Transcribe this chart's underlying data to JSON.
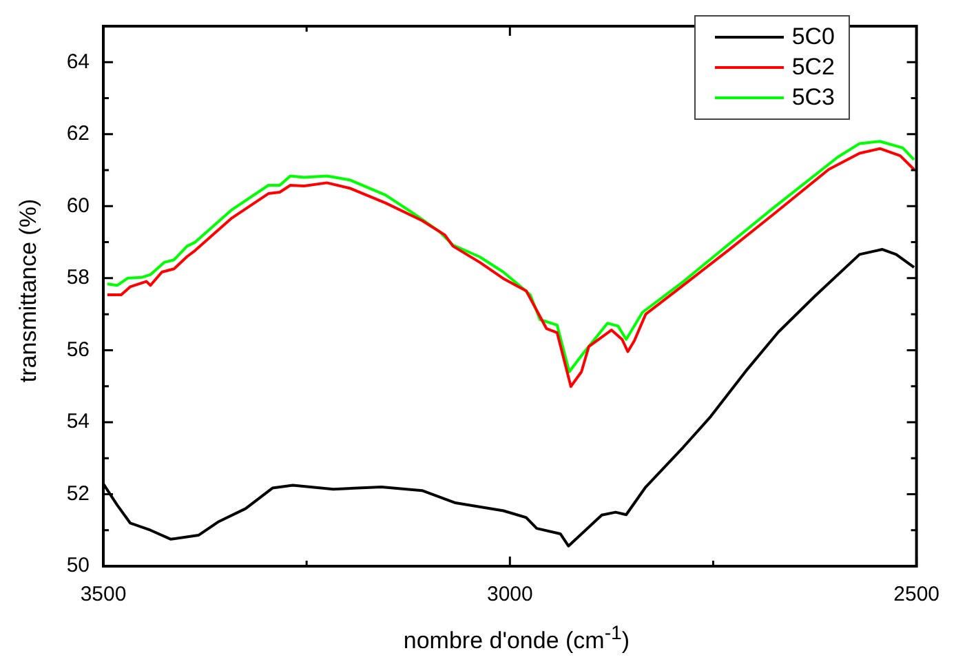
{
  "chart_data": {
    "type": "line",
    "xlabel": "nombre d'onde (cm$^{-1}$)",
    "ylabel": "transmittance (%)",
    "xlim": [
      3500,
      2500
    ],
    "xticks": [
      3500,
      {
        "value": 3250,
        "label": null
      },
      3000,
      {
        "value": 2750,
        "label": null
      },
      2500
    ],
    "ylim": [
      50,
      65
    ],
    "yticks": [
      50,
      {
        "value": 51,
        "label": null
      },
      52,
      {
        "value": 53,
        "label": null
      },
      54,
      {
        "value": 55,
        "label": null
      },
      56,
      {
        "value": 57,
        "label": null
      },
      58,
      {
        "value": 59,
        "label": null
      },
      60,
      {
        "value": 61,
        "label": null
      },
      62,
      {
        "value": 63,
        "label": null
      },
      64
    ],
    "legend": "top right",
    "marker": "none",
    "line_style": "solid",
    "grid": false,
    "series": [
      {
        "name": "5C0",
        "color": "#000000",
        "x": [
          3500,
          3483,
          3467,
          3442,
          3417,
          3383,
          3358,
          3325,
          3292,
          3267,
          3217,
          3158,
          3108,
          3067,
          3008,
          2980,
          2967,
          2938,
          2928,
          2887,
          2870,
          2857,
          2833,
          2787,
          2753,
          2708,
          2670,
          2625,
          2570,
          2542,
          2525,
          2503
        ],
        "values": [
          52.29,
          51.7,
          51.2,
          51.0,
          50.75,
          50.86,
          51.24,
          51.6,
          52.17,
          52.25,
          52.14,
          52.2,
          52.1,
          51.76,
          51.54,
          51.35,
          51.05,
          50.9,
          50.56,
          51.42,
          51.5,
          51.43,
          52.2,
          53.3,
          54.16,
          55.47,
          56.5,
          57.5,
          58.66,
          58.8,
          58.66,
          58.3
        ]
      },
      {
        "name": "5C2",
        "color": "#ff0000",
        "x": [
          3495,
          3478,
          3467,
          3447,
          3442,
          3428,
          3413,
          3397,
          3387,
          3342,
          3297,
          3283,
          3270,
          3253,
          3225,
          3197,
          3153,
          3108,
          3080,
          3070,
          3037,
          3008,
          2980,
          2955,
          2942,
          2925,
          2912,
          2903,
          2875,
          2862,
          2855,
          2847,
          2833,
          2787,
          2730,
          2675,
          2608,
          2570,
          2545,
          2520,
          2503
        ],
        "values": [
          57.54,
          57.54,
          57.76,
          57.91,
          57.8,
          58.17,
          58.26,
          58.6,
          58.77,
          59.67,
          60.35,
          60.39,
          60.58,
          60.56,
          60.65,
          60.5,
          60.09,
          59.6,
          59.2,
          58.89,
          58.44,
          57.99,
          57.65,
          56.6,
          56.49,
          54.99,
          55.4,
          56.1,
          56.56,
          56.3,
          55.96,
          56.26,
          57.0,
          57.8,
          58.8,
          59.79,
          61.02,
          61.47,
          61.6,
          61.4,
          61.02
        ]
      },
      {
        "name": "5C3",
        "color": "#00ff00",
        "x": [
          3495,
          3483,
          3470,
          3453,
          3442,
          3425,
          3413,
          3397,
          3387,
          3342,
          3297,
          3283,
          3270,
          3253,
          3225,
          3197,
          3153,
          3120,
          3087,
          3070,
          3037,
          3008,
          2975,
          2963,
          2942,
          2927,
          2912,
          2880,
          2867,
          2857,
          2837,
          2787,
          2730,
          2675,
          2597,
          2570,
          2545,
          2517,
          2503
        ],
        "values": [
          57.84,
          57.8,
          58.0,
          58.02,
          58.1,
          58.44,
          58.51,
          58.89,
          59.0,
          59.9,
          60.58,
          60.58,
          60.84,
          60.8,
          60.84,
          60.73,
          60.31,
          59.82,
          59.3,
          58.92,
          58.59,
          58.17,
          57.54,
          56.85,
          56.7,
          55.4,
          55.85,
          56.75,
          56.67,
          56.3,
          57.05,
          57.9,
          58.96,
          59.97,
          61.36,
          61.74,
          61.8,
          61.62,
          61.29
        ]
      }
    ]
  }
}
